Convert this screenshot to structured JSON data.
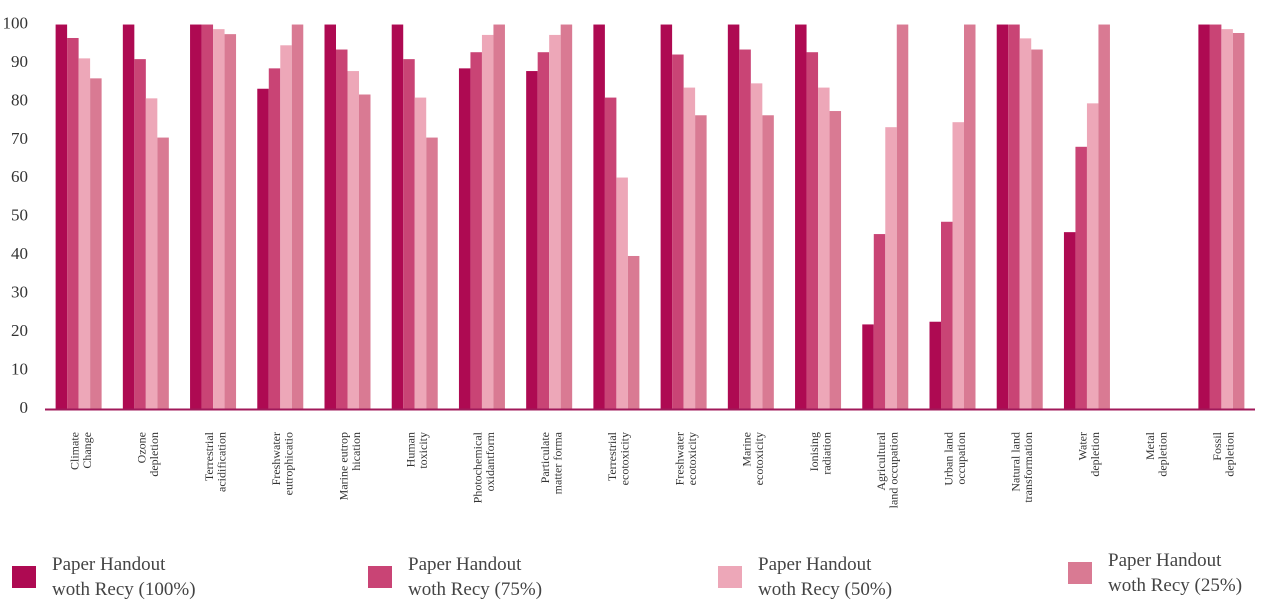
{
  "chart_data": {
    "type": "bar",
    "title": "",
    "xlabel": "",
    "ylabel": "",
    "ylim": [
      0,
      103
    ],
    "yticks": [
      0,
      10,
      20,
      30,
      40,
      50,
      60,
      70,
      80,
      90,
      100
    ],
    "grid": false,
    "legend_position": "bottom",
    "categories": [
      "Climate\nChange",
      "Ozone\ndepletion",
      "Terrestrial\nacidification",
      "Freshwater\neutrophicatio",
      "Marine eutrop\nhication",
      "Human\ntoxicity",
      "Photochemical\noxidantform",
      "Particulate\nmatter forma",
      "Terrestrial\necotoxicity",
      "Freshwater\necotoxicity",
      "Marine\necotoxicity",
      "Ionising\nradiation",
      "Agricultural\nland occupation",
      "Urban land\noccupation",
      "Natural land\ntransformation",
      "Water\ndepletion",
      "Metal\ndepletion",
      "Fossil\ndepletion"
    ],
    "series": [
      {
        "name": "Paper Handout\nwoth Recy (100%)",
        "color": "#ae0a52",
        "values": [
          100,
          100,
          100,
          83.3,
          100,
          100,
          88.6,
          87.9,
          100,
          100,
          100,
          100,
          22,
          22.7,
          100,
          46,
          0,
          100
        ]
      },
      {
        "name": "Paper Handout\nwoth Recy (75%)",
        "color": "#c94475",
        "values": [
          96.5,
          91,
          100,
          88.6,
          93.5,
          91,
          92.8,
          92.8,
          81,
          92.2,
          93.5,
          92.8,
          45.5,
          48.7,
          100,
          68.2,
          0,
          100
        ]
      },
      {
        "name": "Paper Handout\nwoth Recy (50%)",
        "color": "#eda7b8",
        "values": [
          91.2,
          80.8,
          98.8,
          94.6,
          87.9,
          81,
          97.3,
          97.3,
          60.2,
          83.6,
          84.7,
          83.6,
          73.3,
          74.6,
          96.4,
          79.5,
          0,
          98.8
        ]
      },
      {
        "name": "Paper Handout\nwoth Recy (25%)",
        "color": "#d97a93",
        "values": [
          86,
          70.6,
          97.5,
          100,
          81.8,
          70.6,
          100,
          100,
          39.8,
          76.4,
          76.4,
          77.5,
          100,
          100,
          93.5,
          100,
          0,
          97.8
        ]
      }
    ]
  }
}
